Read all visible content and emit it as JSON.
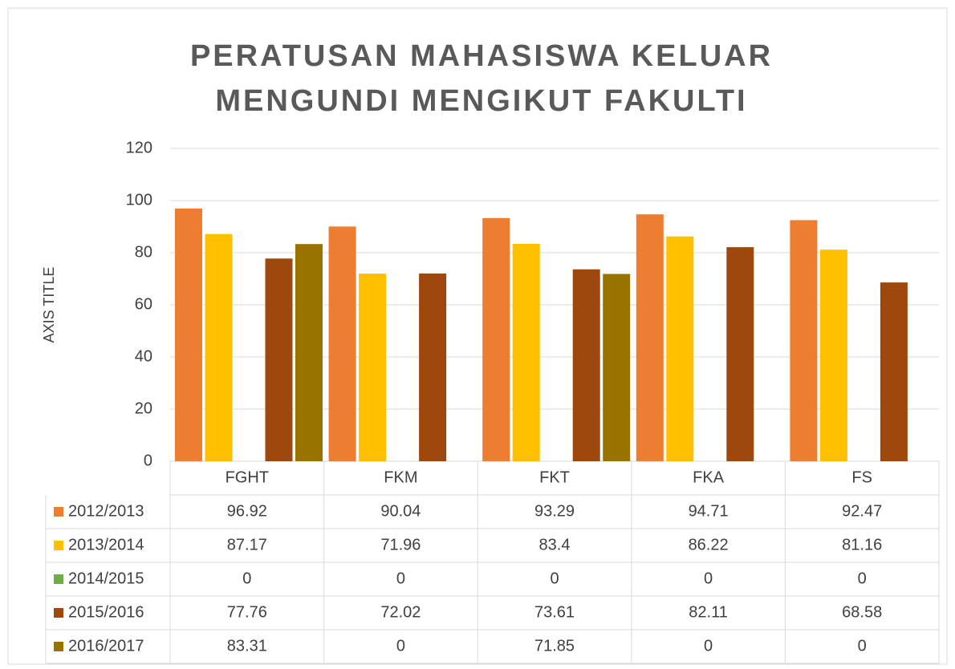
{
  "chart_data": {
    "type": "bar",
    "title": [
      "PERATUSAN MAHASISWA KELUAR",
      "MENGUNDI MENGIKUT FAKULTI"
    ],
    "y_label": "AXIS TITLE",
    "categories": [
      "FGHT",
      "FKM",
      "FKT",
      "FKA",
      "FS"
    ],
    "series": [
      {
        "name": "2012/2013",
        "color": "#ED7D31",
        "values": [
          96.92,
          90.04,
          93.29,
          94.71,
          92.47
        ]
      },
      {
        "name": "2013/2014",
        "color": "#FFC000",
        "values": [
          87.17,
          71.96,
          83.4,
          86.22,
          81.16
        ]
      },
      {
        "name": "2014/2015",
        "color": "#70AD47",
        "values": [
          0,
          0,
          0,
          0,
          0
        ]
      },
      {
        "name": "2015/2016",
        "color": "#9E480E",
        "values": [
          77.76,
          72.02,
          73.61,
          82.11,
          68.58
        ]
      },
      {
        "name": "2016/2017",
        "color": "#997300",
        "values": [
          83.31,
          0,
          71.85,
          0,
          0
        ]
      }
    ],
    "ylim": [
      0,
      120
    ],
    "yticks": [
      0,
      20,
      40,
      60,
      80,
      100,
      120
    ],
    "grid": true,
    "data_table": true
  }
}
